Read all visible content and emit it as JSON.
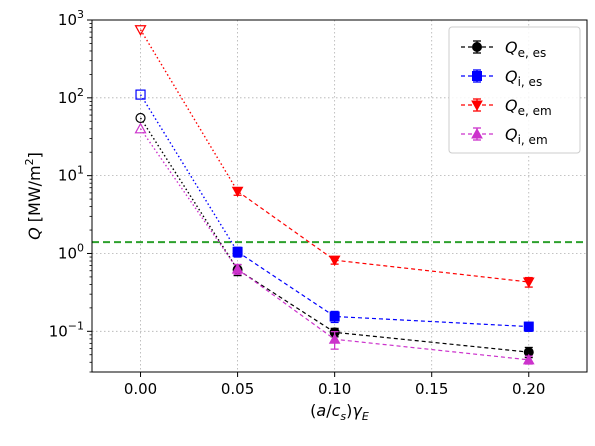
{
  "chart_data": {
    "type": "line",
    "xlabel": "(a/c_s)γ_E",
    "ylabel": "Q [MW/m^2]",
    "xlim": [
      -0.025,
      0.23
    ],
    "ylim": [
      0.03,
      1000
    ],
    "y_scale": "log",
    "grid": true,
    "legend_position": "top-right",
    "xticks": [
      0.0,
      0.05,
      0.1,
      0.15,
      0.2
    ],
    "xtick_labels": [
      "0.00",
      "0.05",
      "0.10",
      "0.15",
      "0.20"
    ],
    "yticks": [
      0.1,
      1,
      10,
      100,
      1000
    ],
    "reference_line": {
      "y": 1.4,
      "color": "#2ca02c",
      "style": "dashed"
    },
    "series": [
      {
        "name": "Q_{e,es}",
        "name_main": "Q",
        "name_sub": "e, es",
        "color": "#000000",
        "marker": "circle",
        "x": [
          0.0,
          0.05,
          0.1,
          0.2
        ],
        "y": [
          55,
          0.62,
          0.097,
          0.054
        ],
        "yerr": [
          0,
          0.1,
          0.012,
          0.008
        ]
      },
      {
        "name": "Q_{i,es}",
        "name_main": "Q",
        "name_sub": "i, es",
        "color": "#0000ff",
        "marker": "square",
        "x": [
          0.0,
          0.05,
          0.1,
          0.2
        ],
        "y": [
          110,
          1.05,
          0.155,
          0.115
        ],
        "yerr": [
          0,
          0.15,
          0.025,
          0.015
        ]
      },
      {
        "name": "Q_{e,em}",
        "name_main": "Q",
        "name_sub": "e, em",
        "color": "#ff0000",
        "marker": "triangle-down",
        "x": [
          0.0,
          0.05,
          0.1,
          0.2
        ],
        "y": [
          750,
          6.3,
          0.82,
          0.43
        ],
        "yerr": [
          0,
          0.7,
          0.09,
          0.06
        ]
      },
      {
        "name": "Q_{i,em}",
        "name_main": "Q",
        "name_sub": "i, em",
        "color": "#cc33cc",
        "marker": "triangle-up",
        "x": [
          0.0,
          0.05,
          0.1,
          0.2
        ],
        "y": [
          40,
          0.63,
          0.079,
          0.043
        ],
        "yerr": [
          0,
          0.09,
          0.02,
          0.005
        ]
      }
    ]
  }
}
